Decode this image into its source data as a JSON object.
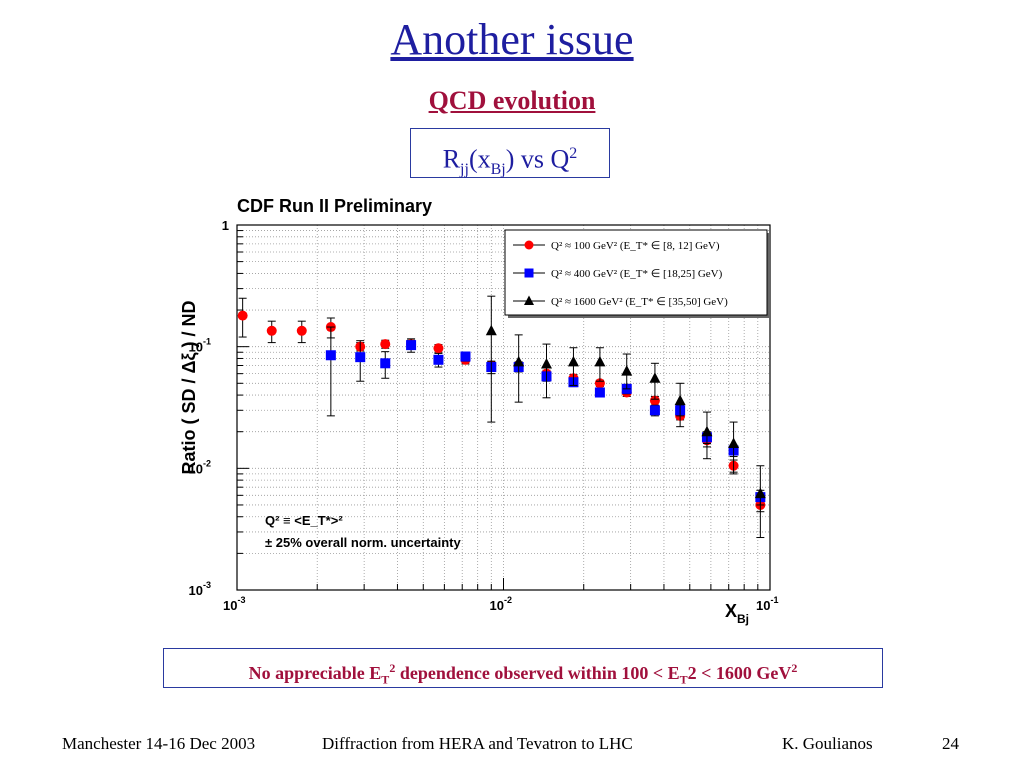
{
  "slide": {
    "title": "Another issue",
    "subtitle": "QCD evolution",
    "box_label": {
      "r": "R",
      "sub1": "jj",
      "open": "(x",
      "sub2": "Bj",
      "rest": ") vs Q",
      "sup": "2"
    },
    "note": {
      "a": "No appreciable E",
      "sub1": "T",
      "sup1": "2",
      "b": " dependence  observed within 100 < E",
      "sub2": "T",
      "c": "2 < 1600 GeV",
      "sup2": "2"
    },
    "footer": {
      "left": "Manchester 14-16 Dec 2003",
      "center": "Diffraction from HERA and Tevatron to LHC",
      "author": "K. Goulianos",
      "page": "24"
    }
  },
  "chart_data": {
    "type": "scatter",
    "title": "CDF Run II Preliminary",
    "ylabel": "Ratio  ( SD / Δξ ) / ND",
    "xlabel": "x_Bj",
    "x_scale": "log",
    "y_scale": "log",
    "xlim": [
      0.001,
      0.1
    ],
    "ylim": [
      0.001,
      1
    ],
    "grid": true,
    "legend_position": "top-right",
    "x_ticks": [
      "10^-3",
      "10^-2",
      "10^-1"
    ],
    "y_ticks": [
      "1",
      "10^-1",
      "10^-2",
      "10^-3"
    ],
    "annotations": [
      "Q² ≡ <E_T*>²",
      "± 25% overall norm. uncertainty"
    ],
    "series": [
      {
        "name": "Q² ≈ 100 GeV² (E_T* ∈ [8, 12] GeV)",
        "marker": "circle",
        "color": "#ff0000",
        "points": [
          {
            "x": 0.00105,
            "y": 0.18,
            "lo": 0.12,
            "hi": 0.25
          },
          {
            "x": 0.00135,
            "y": 0.135,
            "lo": 0.108,
            "hi": 0.162
          },
          {
            "x": 0.00175,
            "y": 0.135,
            "lo": 0.108,
            "hi": 0.162
          },
          {
            "x": 0.00225,
            "y": 0.145,
            "lo": 0.118,
            "hi": 0.172
          },
          {
            "x": 0.0029,
            "y": 0.1,
            "lo": 0.092,
            "hi": 0.108
          },
          {
            "x": 0.0036,
            "y": 0.105,
            "lo": 0.097,
            "hi": 0.113
          },
          {
            "x": 0.0045,
            "y": 0.105,
            "lo": 0.097,
            "hi": 0.113
          },
          {
            "x": 0.0057,
            "y": 0.097,
            "lo": 0.09,
            "hi": 0.104
          },
          {
            "x": 0.0072,
            "y": 0.078,
            "lo": 0.072,
            "hi": 0.084
          },
          {
            "x": 0.009,
            "y": 0.07,
            "lo": 0.065,
            "hi": 0.075
          },
          {
            "x": 0.0114,
            "y": 0.07,
            "lo": 0.065,
            "hi": 0.075
          },
          {
            "x": 0.0145,
            "y": 0.06,
            "lo": 0.056,
            "hi": 0.064
          },
          {
            "x": 0.0183,
            "y": 0.055,
            "lo": 0.051,
            "hi": 0.059
          },
          {
            "x": 0.023,
            "y": 0.05,
            "lo": 0.047,
            "hi": 0.053
          },
          {
            "x": 0.029,
            "y": 0.042,
            "lo": 0.039,
            "hi": 0.045
          },
          {
            "x": 0.037,
            "y": 0.036,
            "lo": 0.033,
            "hi": 0.039
          },
          {
            "x": 0.046,
            "y": 0.027,
            "lo": 0.025,
            "hi": 0.029
          },
          {
            "x": 0.058,
            "y": 0.017,
            "lo": 0.015,
            "hi": 0.019
          },
          {
            "x": 0.073,
            "y": 0.0105,
            "lo": 0.0093,
            "hi": 0.0117
          },
          {
            "x": 0.092,
            "y": 0.005,
            "lo": 0.0044,
            "hi": 0.0056
          }
        ]
      },
      {
        "name": "Q² ≈ 400 GeV² (E_T* ∈ [18,25] GeV)",
        "marker": "square",
        "color": "#0000ff",
        "points": [
          {
            "x": 0.00225,
            "y": 0.085,
            "lo": 0.027,
            "hi": 0.145
          },
          {
            "x": 0.0029,
            "y": 0.082,
            "lo": 0.052,
            "hi": 0.112
          },
          {
            "x": 0.0036,
            "y": 0.073,
            "lo": 0.055,
            "hi": 0.091
          },
          {
            "x": 0.0045,
            "y": 0.103,
            "lo": 0.09,
            "hi": 0.116
          },
          {
            "x": 0.0057,
            "y": 0.078,
            "lo": 0.068,
            "hi": 0.088
          },
          {
            "x": 0.0072,
            "y": 0.083,
            "lo": 0.076,
            "hi": 0.09
          },
          {
            "x": 0.009,
            "y": 0.068,
            "lo": 0.06,
            "hi": 0.076
          },
          {
            "x": 0.0114,
            "y": 0.068,
            "lo": 0.062,
            "hi": 0.074
          },
          {
            "x": 0.0145,
            "y": 0.057,
            "lo": 0.052,
            "hi": 0.062
          },
          {
            "x": 0.0183,
            "y": 0.051,
            "lo": 0.047,
            "hi": 0.055
          },
          {
            "x": 0.023,
            "y": 0.042,
            "lo": 0.039,
            "hi": 0.045
          },
          {
            "x": 0.029,
            "y": 0.045,
            "lo": 0.041,
            "hi": 0.049
          },
          {
            "x": 0.037,
            "y": 0.03,
            "lo": 0.027,
            "hi": 0.033
          },
          {
            "x": 0.046,
            "y": 0.03,
            "lo": 0.027,
            "hi": 0.033
          },
          {
            "x": 0.058,
            "y": 0.018,
            "lo": 0.016,
            "hi": 0.02
          },
          {
            "x": 0.073,
            "y": 0.014,
            "lo": 0.0125,
            "hi": 0.0155
          },
          {
            "x": 0.092,
            "y": 0.0058,
            "lo": 0.005,
            "hi": 0.0066
          }
        ]
      },
      {
        "name": "Q² ≈ 1600 GeV² (E_T* ∈ [35,50] GeV)",
        "marker": "triangle",
        "color": "#000000",
        "points": [
          {
            "x": 0.009,
            "y": 0.135,
            "lo": 0.024,
            "hi": 0.26
          },
          {
            "x": 0.0114,
            "y": 0.075,
            "lo": 0.035,
            "hi": 0.125
          },
          {
            "x": 0.0145,
            "y": 0.072,
            "lo": 0.038,
            "hi": 0.105
          },
          {
            "x": 0.0183,
            "y": 0.075,
            "lo": 0.048,
            "hi": 0.098
          },
          {
            "x": 0.023,
            "y": 0.075,
            "lo": 0.052,
            "hi": 0.098
          },
          {
            "x": 0.029,
            "y": 0.063,
            "lo": 0.045,
            "hi": 0.087
          },
          {
            "x": 0.037,
            "y": 0.055,
            "lo": 0.037,
            "hi": 0.073
          },
          {
            "x": 0.046,
            "y": 0.036,
            "lo": 0.022,
            "hi": 0.05
          },
          {
            "x": 0.058,
            "y": 0.02,
            "lo": 0.012,
            "hi": 0.029
          },
          {
            "x": 0.073,
            "y": 0.016,
            "lo": 0.009,
            "hi": 0.024
          },
          {
            "x": 0.092,
            "y": 0.0062,
            "lo": 0.0027,
            "hi": 0.0105
          }
        ]
      }
    ]
  }
}
